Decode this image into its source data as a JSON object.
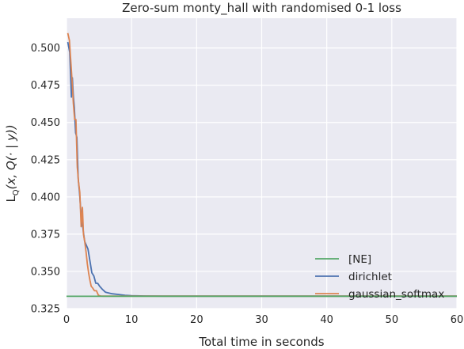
{
  "chart_data": {
    "type": "line",
    "title": "Zero-sum monty_hall with randomised 0-1 loss",
    "xlabel": "Total time in seconds",
    "ylabel": {
      "main": "L",
      "sub": "Q",
      "rest": "(x, Q(· | y))"
    },
    "xlim": [
      0,
      60
    ],
    "ylim": [
      0.325,
      0.52
    ],
    "xticks": [
      0,
      10,
      20,
      30,
      40,
      50,
      60
    ],
    "yticks": [
      0.325,
      0.35,
      0.375,
      0.4,
      0.425,
      0.45,
      0.475,
      0.5
    ],
    "grid": true,
    "legend_position": "lower-right",
    "series": [
      {
        "name": "[NE]",
        "color": "#55a868",
        "x": [
          0,
          60
        ],
        "y": [
          0.3333,
          0.3333
        ]
      },
      {
        "name": "dirichlet",
        "color": "#4c72b0",
        "x": [
          0.2,
          0.5,
          0.75,
          0.9,
          1.05,
          1.2,
          1.4,
          1.6,
          1.8,
          2.0,
          2.2,
          2.4,
          2.6,
          2.8,
          3.0,
          3.3,
          3.6,
          3.9,
          4.2,
          4.5,
          4.8,
          5.1,
          5.5,
          6.0,
          6.5,
          7.0,
          8.0,
          9.0,
          10.0,
          12.0,
          15.0,
          20.0,
          60.0
        ],
        "y": [
          0.504,
          0.497,
          0.467,
          0.48,
          0.468,
          0.46,
          0.443,
          0.44,
          0.412,
          0.403,
          0.39,
          0.384,
          0.376,
          0.37,
          0.368,
          0.365,
          0.357,
          0.349,
          0.347,
          0.342,
          0.342,
          0.34,
          0.338,
          0.336,
          0.3355,
          0.335,
          0.3345,
          0.334,
          0.3337,
          0.3335,
          0.3334,
          0.3334,
          0.3334
        ]
      },
      {
        "name": "gaussian_softmax",
        "color": "#dd8452",
        "x": [
          0.2,
          0.45,
          0.65,
          0.85,
          1.05,
          1.25,
          1.45,
          1.65,
          1.85,
          2.05,
          2.25,
          2.45,
          2.6,
          2.8,
          3.0,
          3.2,
          3.4,
          3.6,
          3.8,
          4.0,
          4.3,
          4.6,
          4.9,
          5.2,
          5.6,
          6.0,
          7.0,
          8.0,
          10.0,
          15.0,
          60.0
        ],
        "y": [
          0.51,
          0.505,
          0.492,
          0.478,
          0.463,
          0.452,
          0.452,
          0.42,
          0.41,
          0.403,
          0.38,
          0.393,
          0.375,
          0.37,
          0.363,
          0.355,
          0.349,
          0.344,
          0.34,
          0.339,
          0.337,
          0.337,
          0.334,
          0.3335,
          0.3334,
          0.3334,
          0.3334,
          0.3334,
          0.3334,
          0.3334,
          0.3334
        ]
      }
    ]
  }
}
